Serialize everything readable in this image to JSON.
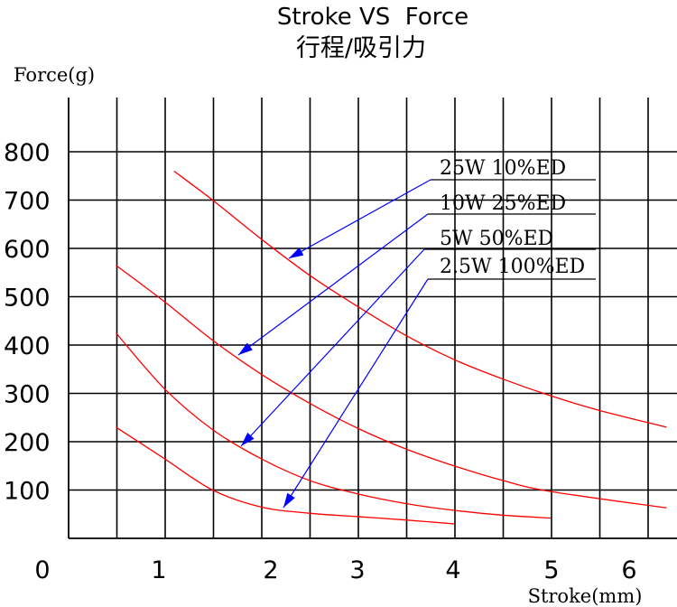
{
  "chart_data": {
    "type": "line",
    "title": "Stroke VS  Force",
    "subtitle": "行程/吸引力",
    "ylabel": "Force(g)",
    "xlabel": "Stroke(mm)",
    "y_ticks": [
      "800",
      "700",
      "600",
      "500",
      "400",
      "300",
      "200",
      "100"
    ],
    "x_ticks": [
      "0",
      "1",
      "2",
      "3",
      "4",
      "5",
      "6"
    ],
    "ylim": [
      0,
      800
    ],
    "grid": true,
    "series": [
      {
        "name": "25W    10%ED",
        "color": "#ff0000",
        "points": [
          [
            1.1,
            760
          ],
          [
            1.5,
            700
          ],
          [
            2.0,
            620
          ],
          [
            2.5,
            545
          ],
          [
            3.0,
            480
          ],
          [
            3.5,
            420
          ],
          [
            4.0,
            370
          ],
          [
            4.5,
            330
          ],
          [
            5.0,
            295
          ],
          [
            5.5,
            265
          ],
          [
            6.2,
            230
          ]
        ]
      },
      {
        "name": "10W   25%ED",
        "color": "#ff0000",
        "points": [
          [
            0.5,
            565
          ],
          [
            1.0,
            490
          ],
          [
            1.5,
            410
          ],
          [
            2.0,
            340
          ],
          [
            2.5,
            280
          ],
          [
            3.0,
            228
          ],
          [
            3.5,
            185
          ],
          [
            4.0,
            150
          ],
          [
            4.5,
            120
          ],
          [
            5.0,
            97
          ],
          [
            6.2,
            63
          ]
        ]
      },
      {
        "name": "5W   50%ED",
        "color": "#ff0000",
        "points": [
          [
            0.5,
            425
          ],
          [
            1.0,
            310
          ],
          [
            1.5,
            225
          ],
          [
            2.0,
            165
          ],
          [
            2.5,
            120
          ],
          [
            3.0,
            92
          ],
          [
            3.5,
            72
          ],
          [
            4.0,
            58
          ],
          [
            4.5,
            48
          ],
          [
            5.0,
            42
          ]
        ]
      },
      {
        "name": "2.5W   100%ED",
        "color": "#ff0000",
        "points": [
          [
            0.5,
            230
          ],
          [
            1.0,
            165
          ],
          [
            1.5,
            100
          ],
          [
            2.0,
            65
          ],
          [
            2.5,
            52
          ],
          [
            3.0,
            45
          ],
          [
            3.5,
            38
          ],
          [
            4.0,
            30
          ]
        ]
      }
    ],
    "legend_entries": [
      "25W    10%ED",
      "10W   25%ED",
      "5W   50%ED",
      "2.5W   100%ED"
    ],
    "legend_placement": "top-right",
    "leader_color": "#0000ff"
  }
}
